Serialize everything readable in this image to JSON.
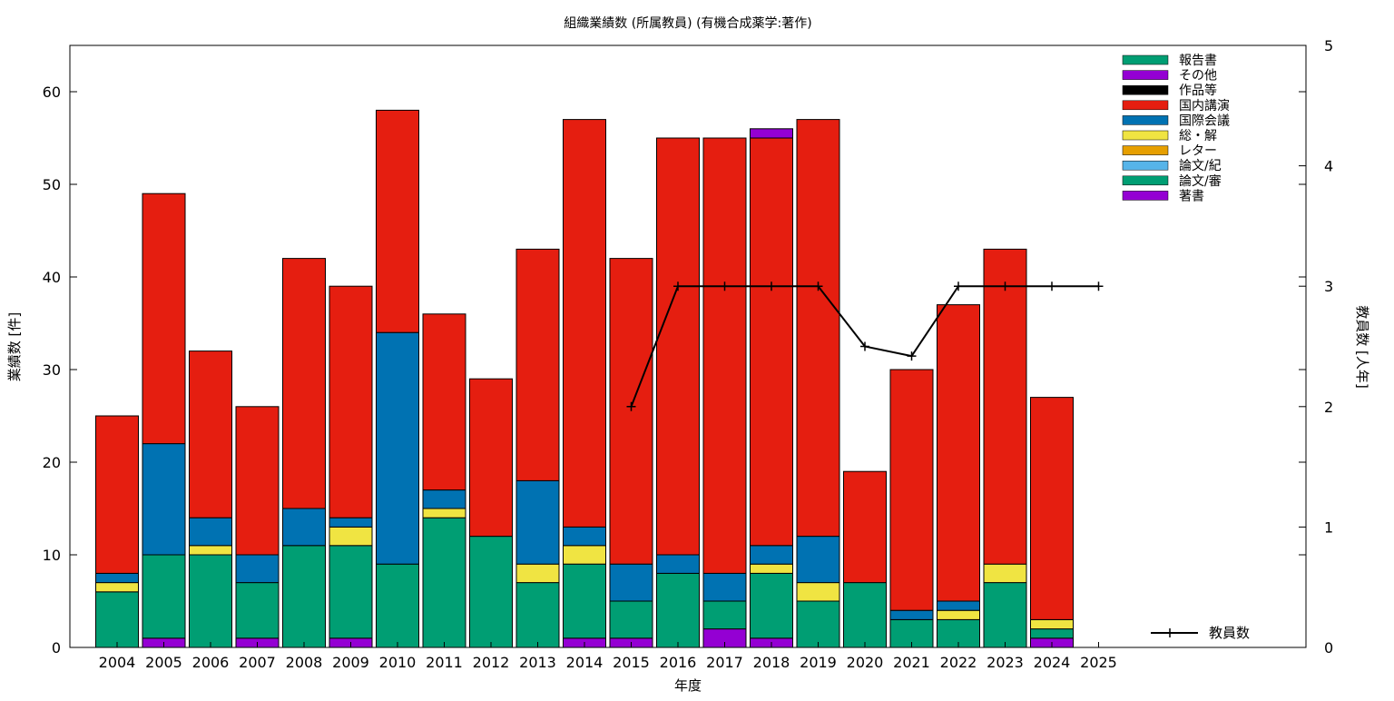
{
  "chart_data": {
    "type": "bar",
    "stacked": true,
    "title": "組織業績数 (所属教員) (有機合成薬学:著作)",
    "xlabel": "年度",
    "ylabel": "業績数 [件]",
    "y2label": "教員数 [人年]",
    "ylim": [
      0,
      65
    ],
    "y2lim": [
      0,
      5
    ],
    "yticks": [
      0,
      10,
      20,
      30,
      40,
      50,
      60
    ],
    "y2ticks": [
      0,
      1,
      2,
      3,
      4,
      5
    ],
    "categories": [
      "2004",
      "2005",
      "2006",
      "2007",
      "2008",
      "2009",
      "2010",
      "2011",
      "2012",
      "2013",
      "2014",
      "2015",
      "2016",
      "2017",
      "2018",
      "2019",
      "2020",
      "2021",
      "2022",
      "2023",
      "2024",
      "2025"
    ],
    "legend_position": "top-right",
    "series": [
      {
        "name": "著書",
        "color": "#9400d3",
        "values": [
          0,
          1,
          0,
          1,
          0,
          1,
          0,
          0,
          0,
          0,
          1,
          1,
          0,
          2,
          1,
          0,
          0,
          0,
          0,
          0,
          1,
          0
        ]
      },
      {
        "name": "論文/審",
        "color": "#009e73",
        "values": [
          6,
          9,
          10,
          6,
          11,
          10,
          9,
          14,
          12,
          7,
          8,
          4,
          8,
          3,
          7,
          5,
          7,
          3,
          3,
          7,
          1,
          0
        ]
      },
      {
        "name": "論文/紀",
        "color": "#56b4e9",
        "values": [
          0,
          0,
          0,
          0,
          0,
          0,
          0,
          0,
          0,
          0,
          0,
          0,
          0,
          0,
          0,
          0,
          0,
          0,
          0,
          0,
          0,
          0
        ]
      },
      {
        "name": "レター",
        "color": "#e69f00",
        "values": [
          0,
          0,
          0,
          0,
          0,
          0,
          0,
          0,
          0,
          0,
          0,
          0,
          0,
          0,
          0,
          0,
          0,
          0,
          0,
          0,
          0,
          0
        ]
      },
      {
        "name": "総・解",
        "color": "#f0e442",
        "values": [
          1,
          0,
          1,
          0,
          0,
          2,
          0,
          1,
          0,
          2,
          2,
          0,
          0,
          0,
          1,
          2,
          0,
          0,
          1,
          2,
          1,
          0
        ]
      },
      {
        "name": "国際会議",
        "color": "#0072b2",
        "values": [
          1,
          12,
          3,
          3,
          4,
          1,
          25,
          2,
          0,
          9,
          2,
          4,
          2,
          3,
          2,
          5,
          0,
          1,
          1,
          0,
          0,
          0
        ]
      },
      {
        "name": "国内講演",
        "color": "#e51e10",
        "values": [
          17,
          27,
          18,
          16,
          27,
          25,
          24,
          19,
          17,
          25,
          44,
          33,
          45,
          47,
          44,
          45,
          12,
          26,
          32,
          34,
          24,
          0
        ]
      },
      {
        "name": "作品等",
        "color": "#000000",
        "values": [
          0,
          0,
          0,
          0,
          0,
          0,
          0,
          0,
          0,
          0,
          0,
          0,
          0,
          0,
          0,
          0,
          0,
          0,
          0,
          0,
          0,
          0
        ]
      },
      {
        "name": "その他",
        "color": "#9400d3",
        "values": [
          0,
          0,
          0,
          0,
          0,
          0,
          0,
          0,
          0,
          0,
          0,
          0,
          0,
          0,
          1,
          0,
          0,
          0,
          0,
          0,
          0,
          0
        ]
      },
      {
        "name": "報告書",
        "color": "#009e73",
        "values": [
          0,
          0,
          0,
          0,
          0,
          0,
          0,
          0,
          0,
          0,
          0,
          0,
          0,
          0,
          0,
          0,
          0,
          0,
          0,
          0,
          0,
          0
        ]
      }
    ],
    "line_series": {
      "name": "教員数",
      "axis": "y2",
      "color": "#000000",
      "x": [
        "2015",
        "2016",
        "2017",
        "2018",
        "2019",
        "2020",
        "2021",
        "2022",
        "2023",
        "2024",
        "2025"
      ],
      "values": [
        2,
        3,
        3,
        3,
        3,
        2.5,
        2.42,
        3,
        3,
        3,
        3
      ]
    }
  }
}
